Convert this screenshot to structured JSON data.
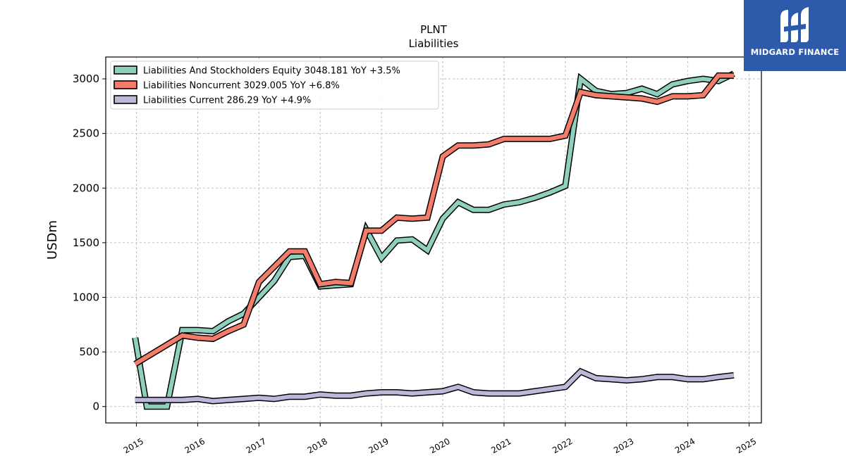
{
  "chart_data": {
    "type": "line",
    "title": "PLNT",
    "subtitle": "Liabilities",
    "ylabel": "USDm",
    "xlabel": "",
    "ylim": [
      -150,
      3200
    ],
    "xlim": [
      2014.5,
      2025.2
    ],
    "yticks": [
      0,
      500,
      1000,
      1500,
      2000,
      2500,
      3000
    ],
    "xticks": [
      2015,
      2016,
      2017,
      2018,
      2019,
      2020,
      2021,
      2022,
      2023,
      2024,
      2025
    ],
    "xtick_labels": [
      "2015",
      "2016",
      "2017",
      "2018",
      "2019",
      "2020",
      "2021",
      "2022",
      "2023",
      "2024",
      "2025"
    ],
    "grid": true,
    "legend_position": "top-left",
    "series": [
      {
        "name": "Liabilities And Stockholders Equity  3048.181 YoY +3.5%",
        "color": "#8ecfbe",
        "x": [
          2014.98,
          2015.17,
          2015.25,
          2015.5,
          2015.75,
          2016.0,
          2016.25,
          2016.5,
          2016.75,
          2017.0,
          2017.25,
          2017.5,
          2017.75,
          2018.0,
          2018.25,
          2018.5,
          2018.75,
          2019.0,
          2019.25,
          2019.5,
          2019.75,
          2020.0,
          2020.25,
          2020.5,
          2020.75,
          2021.0,
          2021.25,
          2021.5,
          2021.75,
          2022.0,
          2022.25,
          2022.5,
          2022.75,
          2023.0,
          2023.25,
          2023.5,
          2023.75,
          2024.0,
          2024.25,
          2024.5,
          2024.75
        ],
        "y": [
          630,
          0,
          0,
          0,
          700,
          700,
          690,
          780,
          850,
          1000,
          1150,
          1370,
          1380,
          1100,
          1110,
          1120,
          1620,
          1360,
          1520,
          1530,
          1430,
          1720,
          1870,
          1800,
          1800,
          1850,
          1870,
          1910,
          1960,
          2020,
          3000,
          2890,
          2860,
          2870,
          2910,
          2860,
          2950,
          2980,
          3000,
          2980,
          3048
        ]
      },
      {
        "name": "Liabilities Noncurrent  3029.005 YoY +6.8%",
        "color": "#f47c6a",
        "x": [
          2014.98,
          2015.75,
          2016.0,
          2016.25,
          2016.5,
          2016.75,
          2017.0,
          2017.25,
          2017.5,
          2017.75,
          2018.0,
          2018.25,
          2018.5,
          2018.75,
          2019.0,
          2019.25,
          2019.5,
          2019.75,
          2020.0,
          2020.25,
          2020.5,
          2020.75,
          2021.0,
          2021.25,
          2021.5,
          2021.75,
          2022.0,
          2022.25,
          2022.5,
          2022.75,
          2023.0,
          2023.25,
          2023.5,
          2023.75,
          2024.0,
          2024.25,
          2024.5,
          2024.75
        ],
        "y": [
          390,
          650,
          630,
          620,
          690,
          750,
          1140,
          1280,
          1420,
          1420,
          1120,
          1140,
          1130,
          1610,
          1610,
          1730,
          1720,
          1730,
          2290,
          2390,
          2390,
          2400,
          2450,
          2450,
          2450,
          2450,
          2480,
          2880,
          2850,
          2840,
          2830,
          2820,
          2790,
          2840,
          2840,
          2850,
          3030,
          3029
        ]
      },
      {
        "name": "Liabilities Current  286.29 YoY +4.9%",
        "color": "#bcb8d8",
        "x": [
          2014.98,
          2015.25,
          2015.5,
          2015.75,
          2016.0,
          2016.25,
          2016.5,
          2016.75,
          2017.0,
          2017.25,
          2017.5,
          2017.75,
          2018.0,
          2018.25,
          2018.5,
          2018.75,
          2019.0,
          2019.25,
          2019.5,
          2019.75,
          2020.0,
          2020.25,
          2020.5,
          2020.75,
          2021.0,
          2021.25,
          2021.5,
          2021.75,
          2022.0,
          2022.25,
          2022.5,
          2022.75,
          2023.0,
          2023.25,
          2023.5,
          2023.75,
          2024.0,
          2024.25,
          2024.5,
          2024.75
        ],
        "y": [
          60,
          60,
          60,
          60,
          70,
          50,
          60,
          70,
          80,
          70,
          90,
          90,
          110,
          100,
          100,
          120,
          130,
          130,
          120,
          130,
          140,
          180,
          130,
          120,
          120,
          120,
          140,
          160,
          180,
          320,
          260,
          250,
          240,
          250,
          270,
          270,
          250,
          250,
          270,
          286
        ]
      }
    ]
  },
  "logo": {
    "brand_name": "MIDGARD FINANCE",
    "background_color": "#2d5aab"
  }
}
